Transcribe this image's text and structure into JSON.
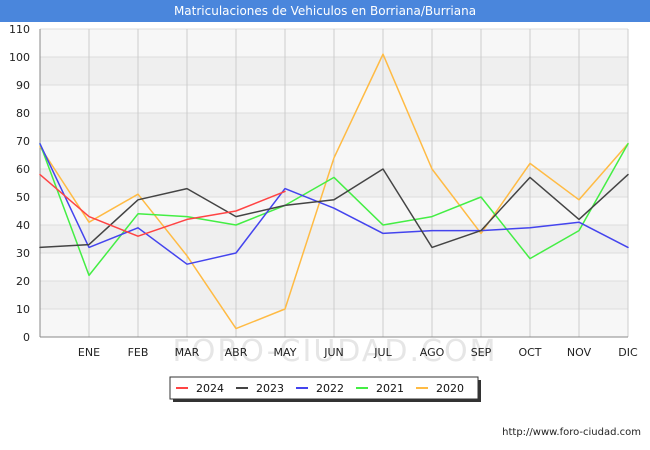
{
  "chart_data": {
    "type": "line",
    "title": "Matriculaciones de Vehiculos en Borriana/Burriana",
    "xlabel": "",
    "ylabel": "",
    "categories": [
      "",
      "ENE",
      "FEB",
      "MAR",
      "ABR",
      "MAY",
      "JUN",
      "JUL",
      "AGO",
      "SEP",
      "OCT",
      "NOV",
      "DIC"
    ],
    "ylim": [
      0,
      110
    ],
    "yticks": [
      0,
      10,
      20,
      30,
      40,
      50,
      60,
      70,
      80,
      90,
      100,
      110
    ],
    "grid": true,
    "legend_position": "bottom",
    "series": [
      {
        "name": "2024",
        "color": "#ff4444",
        "values": [
          58,
          43,
          36,
          42,
          45,
          52,
          null,
          null,
          null,
          null,
          null,
          null,
          null
        ]
      },
      {
        "name": "2023",
        "color": "#444444",
        "values": [
          32,
          33,
          49,
          53,
          43,
          47,
          49,
          60,
          32,
          38,
          57,
          42,
          58
        ]
      },
      {
        "name": "2022",
        "color": "#4444ee",
        "values": [
          69,
          32,
          39,
          26,
          30,
          53,
          46,
          37,
          38,
          38,
          39,
          41,
          32
        ]
      },
      {
        "name": "2021",
        "color": "#44ee44",
        "values": [
          69,
          22,
          44,
          43,
          40,
          47,
          57,
          40,
          43,
          50,
          28,
          38,
          69
        ]
      },
      {
        "name": "2020",
        "color": "#ffbb44",
        "values": [
          68,
          41,
          51,
          29,
          3,
          10,
          64,
          101,
          60,
          37,
          62,
          49,
          69
        ]
      }
    ]
  },
  "watermark": "FORO-CIUDAD.COM",
  "footer_url": "http://www.foro-ciudad.com"
}
